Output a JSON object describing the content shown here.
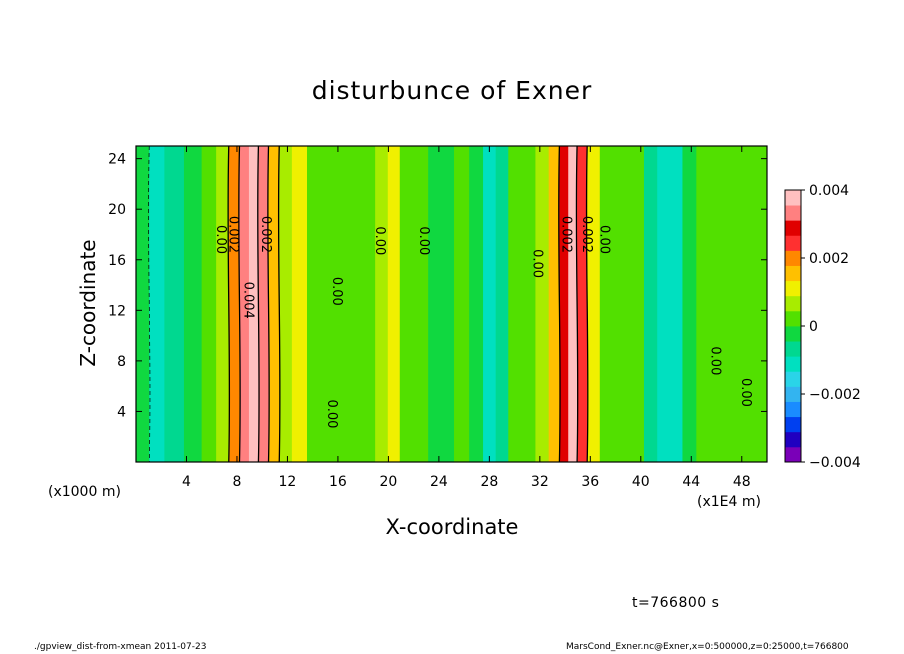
{
  "title": "disturbunce of Exner",
  "xunit_left": "(x1000 m)",
  "xunit_right": "(x1E4 m)",
  "timestamp": "t=766800 s",
  "footer_left": "./gpview_dist-from-xmean   2011-07-23",
  "footer_right": "MarsCond_Exner.nc@Exner,x=0:500000,z=0:25000,t=766800",
  "chart_data": {
    "type": "heatmap",
    "title": "disturbunce of Exner",
    "xlabel": "X-coordinate",
    "ylabel": "Z-coordinate",
    "xlim": [
      0,
      50
    ],
    "ylim": [
      0,
      25
    ],
    "x_ticks": [
      4,
      8,
      12,
      16,
      20,
      24,
      28,
      32,
      36,
      40,
      44,
      48
    ],
    "y_ticks": [
      4,
      8,
      12,
      16,
      20,
      24
    ],
    "colorbar": {
      "range": [
        -0.004,
        0.004
      ],
      "tick_values": [
        0.004,
        0.002,
        0,
        -0.002,
        -0.004
      ],
      "tick_labels": [
        "0.004",
        "0.002",
        "0",
        "−0.002",
        "−0.004"
      ],
      "colors": [
        "#7a00b8",
        "#2000c0",
        "#0040f0",
        "#1a8cff",
        "#33b4f0",
        "#2ad4e8",
        "#00e0c0",
        "#00d890",
        "#10d840",
        "#52e000",
        "#a8ec00",
        "#f0f000",
        "#ffc000",
        "#ff8800",
        "#ff3030",
        "#e00000",
        "#ff8080",
        "#ffc0c0"
      ]
    },
    "columns": [
      {
        "x": 0.6,
        "value": -0.0001
      },
      {
        "x": 1.5,
        "value": -0.0013
      },
      {
        "x": 3.0,
        "value": -0.0008
      },
      {
        "x": 4.6,
        "value": -0.0003
      },
      {
        "x": 5.8,
        "value": 0.0003
      },
      {
        "x": 6.9,
        "value": 0.0008
      },
      {
        "x": 7.8,
        "value": 0.0018
      },
      {
        "x": 8.6,
        "value": 0.0034
      },
      {
        "x": 9.3,
        "value": 0.0042
      },
      {
        "x": 10.1,
        "value": 0.0032
      },
      {
        "x": 10.9,
        "value": 0.0016
      },
      {
        "x": 11.8,
        "value": 0.0006
      },
      {
        "x": 12.9,
        "value": 0.001
      },
      {
        "x": 14.2,
        "value": 0.0004
      },
      {
        "x": 15.6,
        "value": 0.0001
      },
      {
        "x": 17.0,
        "value": 0.0003
      },
      {
        "x": 18.4,
        "value": 0.0001
      },
      {
        "x": 19.5,
        "value": 0.0008
      },
      {
        "x": 20.4,
        "value": 0.0012
      },
      {
        "x": 21.4,
        "value": 0.0004
      },
      {
        "x": 22.6,
        "value": 0.0002
      },
      {
        "x": 23.7,
        "value": -0.0003
      },
      {
        "x": 24.6,
        "value": -0.0002
      },
      {
        "x": 25.8,
        "value": 0.0001
      },
      {
        "x": 27.0,
        "value": -0.0004
      },
      {
        "x": 28.0,
        "value": -0.001
      },
      {
        "x": 29.0,
        "value": -0.0005
      },
      {
        "x": 30.0,
        "value": 0.0001
      },
      {
        "x": 31.1,
        "value": 0.0004
      },
      {
        "x": 32.2,
        "value": 0.0007
      },
      {
        "x": 33.2,
        "value": 0.0014
      },
      {
        "x": 33.9,
        "value": 0.0028
      },
      {
        "x": 34.6,
        "value": 0.0036
      },
      {
        "x": 35.3,
        "value": 0.0024
      },
      {
        "x": 36.2,
        "value": 0.001
      },
      {
        "x": 37.3,
        "value": 0.0004
      },
      {
        "x": 38.5,
        "value": 0.0002
      },
      {
        "x": 39.7,
        "value": 0.0
      },
      {
        "x": 40.8,
        "value": -0.0006
      },
      {
        "x": 41.8,
        "value": -0.0012
      },
      {
        "x": 42.8,
        "value": -0.0009
      },
      {
        "x": 43.8,
        "value": -0.0002
      },
      {
        "x": 45.0,
        "value": 0.0002
      },
      {
        "x": 46.2,
        "value": 0.0002
      },
      {
        "x": 47.4,
        "value": 0.0001
      },
      {
        "x": 48.6,
        "value": 0.0002
      },
      {
        "x": 49.5,
        "value": 0.0003
      }
    ],
    "contour_labels": [
      {
        "text": "0.00",
        "x": 6.4,
        "z": 17.6
      },
      {
        "text": "0.002",
        "x": 7.4,
        "z": 18.0
      },
      {
        "text": "0.002",
        "x": 10.0,
        "z": 18.0
      },
      {
        "text": "0.004",
        "x": 8.6,
        "z": 12.8
      },
      {
        "text": "0.00",
        "x": 15.6,
        "z": 13.5
      },
      {
        "text": "0.00",
        "x": 15.2,
        "z": 3.8
      },
      {
        "text": "0.00",
        "x": 19.0,
        "z": 17.5
      },
      {
        "text": "0.00",
        "x": 22.5,
        "z": 17.5
      },
      {
        "text": "0.00",
        "x": 31.5,
        "z": 15.7
      },
      {
        "text": "0.002",
        "x": 33.8,
        "z": 18.0
      },
      {
        "text": "0.002",
        "x": 35.4,
        "z": 18.0
      },
      {
        "text": "0.00",
        "x": 36.8,
        "z": 17.6
      },
      {
        "text": "0.00",
        "x": 45.6,
        "z": 8.0
      },
      {
        "text": "0.00",
        "x": 48.0,
        "z": 5.5
      }
    ]
  }
}
